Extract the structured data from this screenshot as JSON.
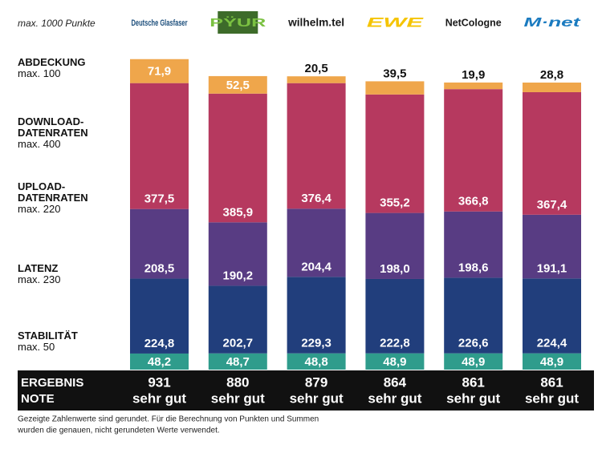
{
  "chart_data": {
    "type": "stacked_bar",
    "subtitle": "max. 1000 Punkte",
    "categories": [
      "Deutsche Glasfaser",
      "PŸUR",
      "wilhelm.tel",
      "EWE",
      "NetCologne",
      "M·net"
    ],
    "series": [
      {
        "name": "STABILITÄT",
        "max": "max. 50",
        "color": "#2f9c8c",
        "values": [
          48.2,
          48.7,
          48.8,
          48.9,
          48.9,
          48.9
        ],
        "value_labels": [
          "48,2",
          "48,7",
          "48,8",
          "48,9",
          "48,9",
          "48,9"
        ]
      },
      {
        "name": "LATENZ",
        "max": "max. 230",
        "color": "#213e7c",
        "values": [
          224.8,
          202.7,
          229.3,
          222.8,
          226.6,
          224.4
        ],
        "value_labels": [
          "224,8",
          "202,7",
          "229,3",
          "222,8",
          "226,6",
          "224,4"
        ]
      },
      {
        "name": "UPLOAD-DATENRATEN",
        "max": "max. 220",
        "color": "#583c83",
        "values": [
          208.5,
          190.2,
          204.4,
          198.0,
          198.6,
          191.1
        ],
        "value_labels": [
          "208,5",
          "190,2",
          "204,4",
          "198,0",
          "198,6",
          "191,1"
        ]
      },
      {
        "name": "DOWNLOAD-DATENRATEN",
        "max": "max. 400",
        "color": "#b6395f",
        "values": [
          377.5,
          385.9,
          376.4,
          355.2,
          366.8,
          367.4
        ],
        "value_labels": [
          "377,5",
          "385,9",
          "376,4",
          "355,2",
          "366,8",
          "367,4"
        ]
      },
      {
        "name": "ABDECKUNG",
        "max": "max. 100",
        "color": "#efa64b",
        "values": [
          71.9,
          52.5,
          20.5,
          39.5,
          19.9,
          28.8
        ],
        "value_labels": [
          "71,9",
          "52,5",
          "20,5",
          "39,5",
          "19,9",
          "28,8"
        ]
      }
    ],
    "result_label": "ERGEBNIS",
    "results": [
      931,
      880,
      879,
      864,
      861,
      861
    ],
    "grade_label": "NOTE",
    "grades": [
      "sehr gut",
      "sehr gut",
      "sehr gut",
      "sehr gut",
      "sehr gut",
      "sehr gut"
    ],
    "footnote": [
      "Gezeigte Zahlenwerte sind gerundet. Für die Berechnung von Punkten und Summen",
      "wurden die genauen, nicht gerundeten Werte verwendet."
    ]
  }
}
